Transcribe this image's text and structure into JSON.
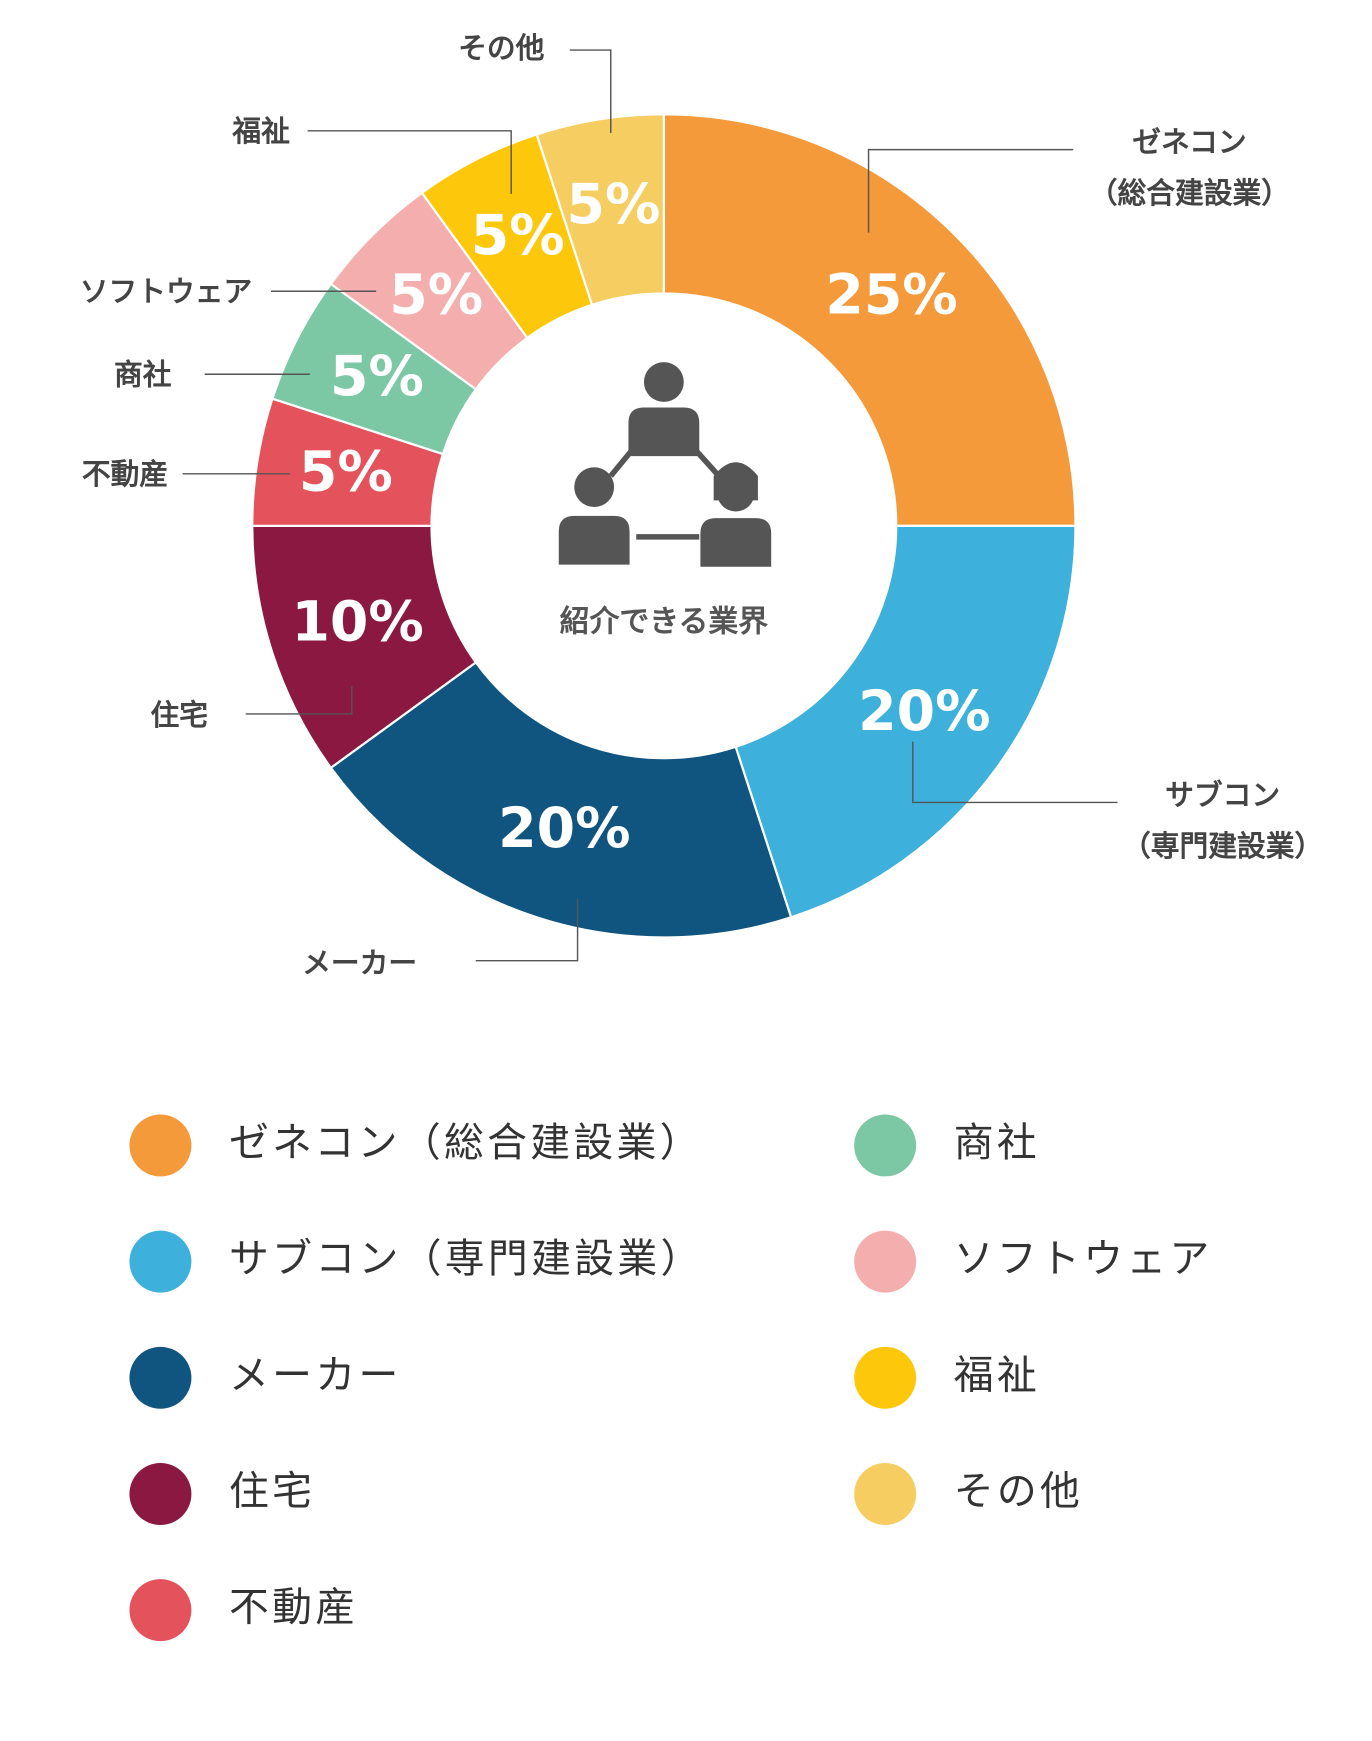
{
  "chart_data": {
    "type": "donut",
    "center_text": "紹介できる業界",
    "categories": [
      "ゼネコン（総合建設業）",
      "サブコン（専門建設業）",
      "メーカー",
      "住宅",
      "不動産",
      "商社",
      "ソフトウェア",
      "福祉",
      "その他"
    ],
    "values": [
      25,
      20,
      20,
      10,
      5,
      5,
      5,
      5,
      5
    ],
    "value_labels": [
      "25%",
      "20%",
      "20%",
      "10%",
      "5%",
      "5%",
      "5%",
      "5%",
      "5%"
    ],
    "colors": [
      "#f59a3b",
      "#3db0dc",
      "#10557f",
      "#8b1840",
      "#e4525c",
      "#7cc7a4",
      "#f4aeae",
      "#fdc80b",
      "#f6cd60"
    ],
    "legend": true
  }
}
